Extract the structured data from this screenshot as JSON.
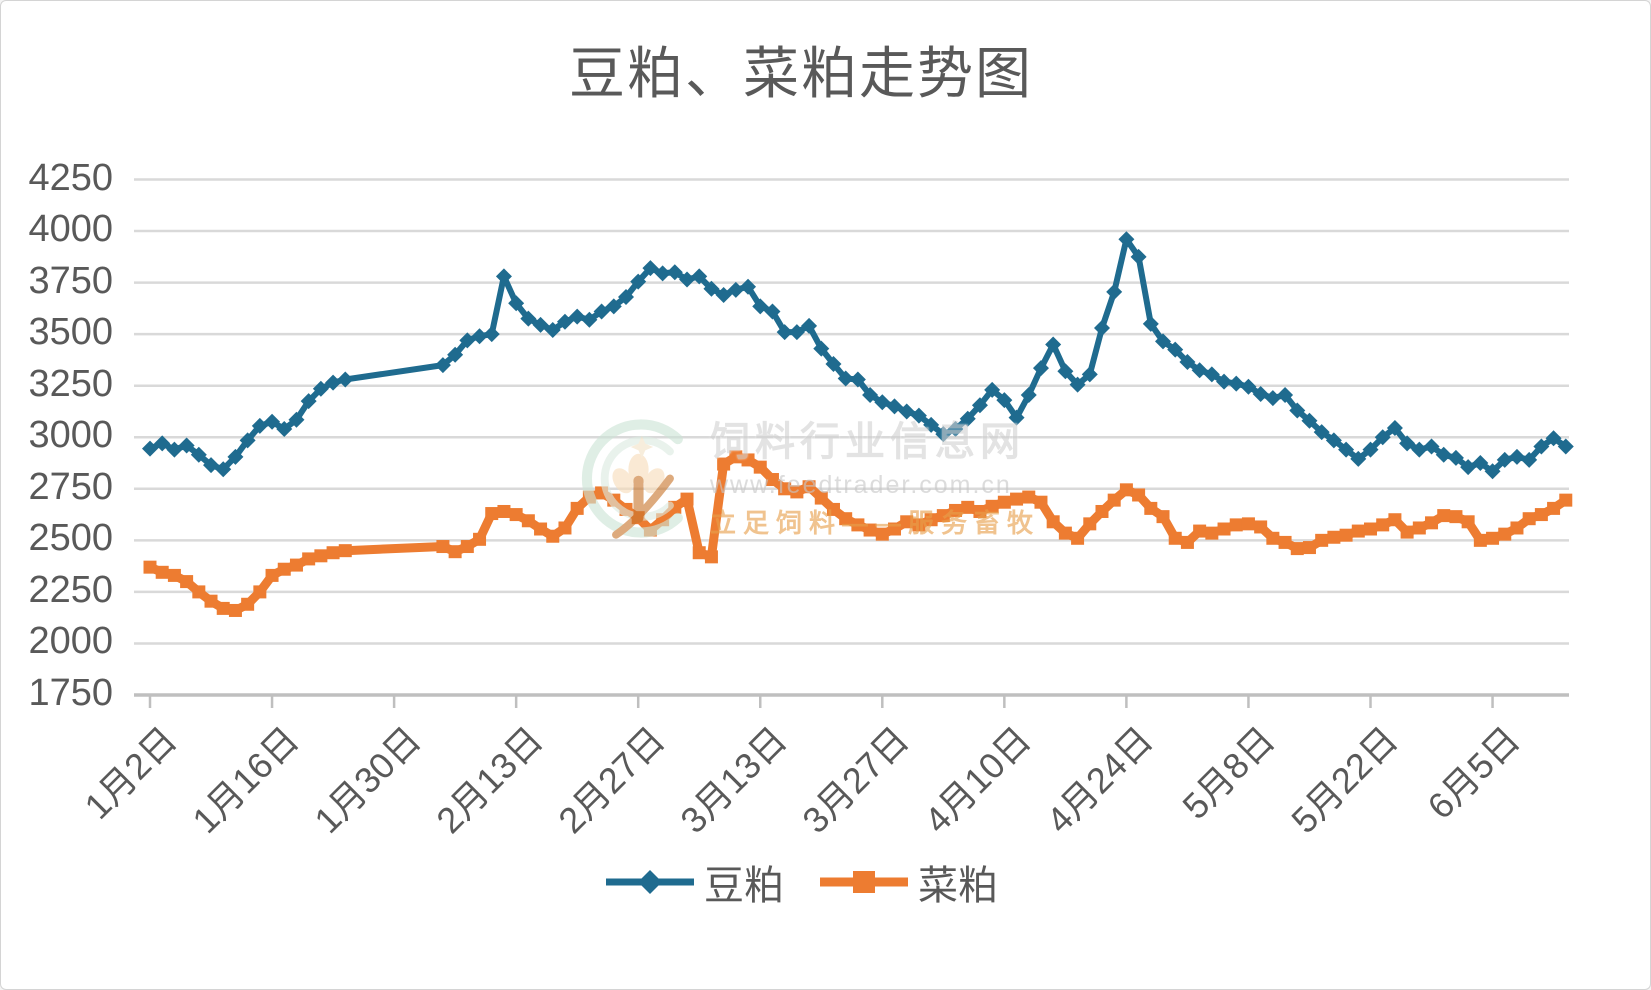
{
  "chart_data": {
    "type": "line",
    "title": "豆粕、菜粕走势图",
    "xlabel": "",
    "ylabel": "",
    "grid": true,
    "legend_position": "bottom",
    "y_axis": {
      "min": 1750,
      "max": 4250,
      "step": 250,
      "tick_labels": [
        "4250",
        "4000",
        "3750",
        "3500",
        "3250",
        "3000",
        "2750",
        "2500",
        "2250",
        "2000",
        "1750"
      ]
    },
    "x_tick_labels": [
      "1月2日",
      "1月16日",
      "1月30日",
      "2月13日",
      "2月27日",
      "3月13日",
      "3月27日",
      "4月10日",
      "4月24日",
      "5月8日",
      "5月22日",
      "6月5日"
    ],
    "x_tick_interval": 10,
    "series": [
      {
        "name": "豆粕",
        "color": "#1F6B8F",
        "marker": "diamond",
        "values": [
          2945,
          2970,
          2940,
          2960,
          2915,
          2865,
          2845,
          2905,
          2985,
          3055,
          3075,
          3040,
          3085,
          3175,
          3235,
          3265,
          3280,
          null,
          null,
          null,
          null,
          null,
          null,
          null,
          3350,
          3400,
          3470,
          3490,
          3500,
          3780,
          3650,
          3575,
          3545,
          3520,
          3560,
          3585,
          3570,
          3610,
          3635,
          3680,
          3755,
          3820,
          3795,
          3800,
          3765,
          3780,
          3720,
          3690,
          3715,
          3730,
          3635,
          3610,
          3510,
          3510,
          3540,
          3430,
          3355,
          3285,
          3280,
          3205,
          3170,
          3150,
          3125,
          3105,
          3060,
          3015,
          3040,
          3090,
          3155,
          3230,
          3180,
          3095,
          3205,
          3335,
          3450,
          3320,
          3255,
          3305,
          3530,
          3705,
          3960,
          3875,
          3550,
          3465,
          3425,
          3365,
          3325,
          3305,
          3270,
          3260,
          3245,
          3210,
          3190,
          3205,
          3130,
          3080,
          3025,
          2985,
          2940,
          2895,
          2940,
          3000,
          3045,
          2970,
          2940,
          2955,
          2915,
          2900,
          2855,
          2875,
          2835,
          2890,
          2905,
          2890,
          2955,
          2995,
          2955
        ]
      },
      {
        "name": "菜粕",
        "color": "#ED7C31",
        "marker": "square",
        "values": [
          2370,
          2345,
          2330,
          2300,
          2250,
          2205,
          2170,
          2160,
          2190,
          2250,
          2330,
          2360,
          2380,
          2410,
          2425,
          2440,
          2450,
          null,
          null,
          null,
          null,
          null,
          null,
          null,
          2470,
          2445,
          2470,
          2505,
          2630,
          2640,
          2625,
          2595,
          2555,
          2520,
          2560,
          2655,
          2710,
          2730,
          2695,
          2650,
          2610,
          2550,
          2600,
          2660,
          2700,
          2440,
          2420,
          2870,
          2905,
          2890,
          2855,
          2795,
          2750,
          2735,
          2760,
          2705,
          2650,
          2605,
          2575,
          2550,
          2530,
          2555,
          2590,
          2575,
          2600,
          2620,
          2645,
          2660,
          2640,
          2665,
          2685,
          2700,
          2710,
          2685,
          2590,
          2535,
          2510,
          2580,
          2640,
          2695,
          2745,
          2720,
          2655,
          2615,
          2510,
          2490,
          2545,
          2535,
          2555,
          2575,
          2580,
          2565,
          2510,
          2490,
          2460,
          2465,
          2500,
          2515,
          2525,
          2545,
          2555,
          2575,
          2600,
          2540,
          2560,
          2585,
          2620,
          2615,
          2590,
          2500,
          2510,
          2530,
          2560,
          2605,
          2625,
          2655,
          2695
        ]
      }
    ]
  },
  "legend": [
    {
      "label": "豆粕",
      "color": "#1F6B8F",
      "marker": "diamond"
    },
    {
      "label": "菜粕",
      "color": "#ED7C31",
      "marker": "square"
    }
  ],
  "watermark": {
    "site_name": "饲料行业信息网",
    "url": "www.feedtrader.com.cn",
    "slogan": "立足饲料——服务畜牧"
  },
  "colors": {
    "grid": "#D9D9D9",
    "axis": "#BFBFBF",
    "text": "#595959",
    "title": "#595959"
  }
}
